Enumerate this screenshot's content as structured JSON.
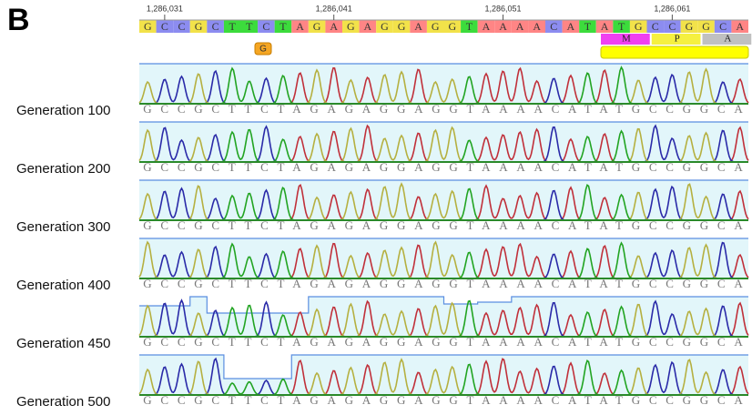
{
  "panel_label": "B",
  "positions": [
    "1,286,031",
    "1,286,041",
    "1,286,051",
    "1,286,061"
  ],
  "reference": {
    "bases": [
      "G",
      "C",
      "C",
      "G",
      "C",
      "T",
      "T",
      "C",
      "T",
      "A",
      "G",
      "A",
      "G",
      "A",
      "G",
      "G",
      "A",
      "G",
      "G",
      "T",
      "A",
      "A",
      "A",
      "A",
      "C",
      "A",
      "T",
      "A",
      "T",
      "G",
      "C",
      "C",
      "G",
      "G",
      "C",
      "A"
    ]
  },
  "variant": "G",
  "translation": [
    "M",
    "P",
    "A"
  ],
  "samples": [
    {
      "label": "Generation 100",
      "sequence": "GCCGCTTCTAGAGAGGAGGTAAAACATATGCCGGCA"
    },
    {
      "label": "Generation 200",
      "sequence": "GCCGCTTCTAGAGAGGAGGTAAAACATATGCCGGCA"
    },
    {
      "label": "Generation 300",
      "sequence": "GCCGCTTCTAGAGAGGAGGTAAAACATATGCCGGCA"
    },
    {
      "label": "Generation 400",
      "sequence": "GCCGCTTCTAGAGAGGAGGTAAAACATATGCCGGCA"
    },
    {
      "label": "Generation 450",
      "sequence": "GCCGCTTCTAGAGAGGAGGTAAAACATATGCCGGCA"
    },
    {
      "label": "Generation 500",
      "sequence": "GCCGCTTCTAGAGAGGAGGTAAAACATATGCCGGCA"
    }
  ]
}
